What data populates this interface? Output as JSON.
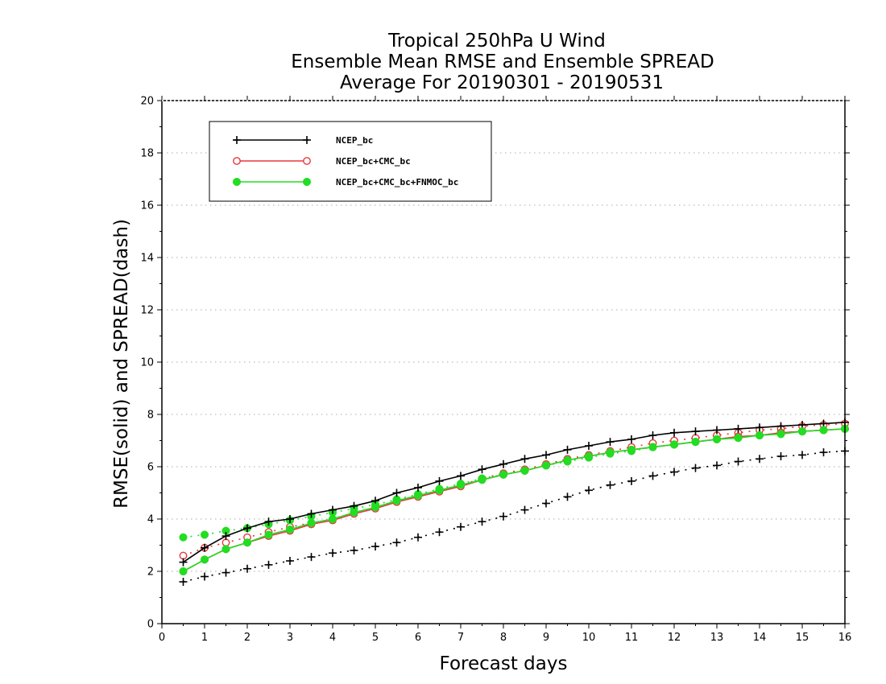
{
  "chart_data": {
    "type": "line",
    "title": [
      "Tropical 250hPa U Wind",
      "Ensemble Mean RMSE and Ensemble SPREAD",
      "Average For 20190301 - 20190531"
    ],
    "xlabel": "Forecast days",
    "ylabel": "RMSE(solid) and SPREAD(dash)",
    "xlim": [
      0,
      16
    ],
    "ylim": [
      0,
      20
    ],
    "xticks": [
      "0",
      "1",
      "2",
      "3",
      "4",
      "5",
      "6",
      "7",
      "8",
      "9",
      "10",
      "11",
      "12",
      "13",
      "14",
      "15",
      "16"
    ],
    "yticks": [
      "0",
      "2",
      "4",
      "6",
      "8",
      "10",
      "12",
      "14",
      "16",
      "18",
      "20"
    ],
    "grid": true,
    "legend_position": "top-left",
    "x": [
      0.5,
      1,
      1.5,
      2,
      2.5,
      3,
      3.5,
      4,
      4.5,
      5,
      5.5,
      6,
      6.5,
      7,
      7.5,
      8,
      8.5,
      9,
      9.5,
      10,
      10.5,
      11,
      11.5,
      12,
      12.5,
      13,
      13.5,
      14,
      14.5,
      15,
      15.5,
      16
    ],
    "series": [
      {
        "name": "NCEP_bc",
        "color": "#000000",
        "marker": "plus",
        "rmse": [
          2.35,
          2.9,
          3.35,
          3.65,
          3.9,
          4.0,
          4.2,
          4.35,
          4.5,
          4.7,
          5.0,
          5.2,
          5.45,
          5.65,
          5.9,
          6.1,
          6.3,
          6.45,
          6.65,
          6.8,
          6.95,
          7.05,
          7.2,
          7.3,
          7.35,
          7.4,
          7.45,
          7.5,
          7.55,
          7.6,
          7.65,
          7.7
        ],
        "spread": [
          1.6,
          1.8,
          1.95,
          2.1,
          2.25,
          2.4,
          2.55,
          2.7,
          2.8,
          2.95,
          3.1,
          3.3,
          3.5,
          3.7,
          3.9,
          4.1,
          4.35,
          4.6,
          4.85,
          5.1,
          5.3,
          5.45,
          5.65,
          5.8,
          5.95,
          6.05,
          6.2,
          6.3,
          6.4,
          6.45,
          6.55,
          6.6
        ]
      },
      {
        "name": "NCEP_bc+CMC_bc",
        "color": "#e8383d",
        "marker": "open-circle",
        "rmse": [
          2.0,
          2.45,
          2.85,
          3.1,
          3.35,
          3.55,
          3.8,
          3.95,
          4.2,
          4.4,
          4.65,
          4.85,
          5.05,
          5.25,
          5.5,
          5.7,
          5.85,
          6.05,
          6.25,
          6.4,
          6.55,
          6.65,
          6.75,
          6.85,
          6.95,
          7.05,
          7.15,
          7.2,
          7.3,
          7.35,
          7.4,
          7.45
        ],
        "spread": [
          2.6,
          2.9,
          3.1,
          3.3,
          3.5,
          3.7,
          3.85,
          4.0,
          4.25,
          4.45,
          4.7,
          4.9,
          5.1,
          5.3,
          5.55,
          5.75,
          5.9,
          6.1,
          6.3,
          6.45,
          6.6,
          6.75,
          6.9,
          7.0,
          7.1,
          7.2,
          7.3,
          7.4,
          7.45,
          7.55,
          7.6,
          7.65
        ]
      },
      {
        "name": "NCEP_bc+CMC_bc+FNMOC_bc",
        "color": "#22dd22",
        "marker": "filled-circle",
        "rmse": [
          2.0,
          2.45,
          2.85,
          3.1,
          3.4,
          3.6,
          3.85,
          4.0,
          4.25,
          4.45,
          4.7,
          4.9,
          5.1,
          5.3,
          5.5,
          5.7,
          5.85,
          6.05,
          6.25,
          6.4,
          6.55,
          6.65,
          6.75,
          6.85,
          6.95,
          7.05,
          7.1,
          7.2,
          7.25,
          7.35,
          7.4,
          7.45
        ],
        "spread": [
          3.3,
          3.4,
          3.55,
          3.65,
          3.8,
          3.95,
          4.1,
          4.25,
          4.4,
          4.55,
          4.75,
          4.95,
          5.15,
          5.35,
          5.55,
          5.7,
          5.85,
          6.05,
          6.2,
          6.35,
          6.5,
          6.6,
          6.75,
          6.85,
          6.95,
          7.05,
          7.15,
          7.2,
          7.3,
          7.35,
          7.4,
          7.45
        ]
      }
    ]
  }
}
